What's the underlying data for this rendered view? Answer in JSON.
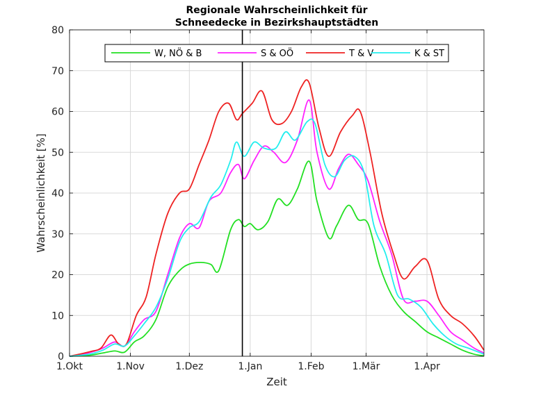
{
  "chart_data": {
    "type": "line",
    "title_line1": "Regionale Wahrscheinlichkeit für",
    "title_line2": "Schneedecke in Bezirkshauptstädten",
    "xlabel": "Zeit",
    "ylabel": "Wahrscheinlichkeit [%]",
    "ylim": [
      0,
      80
    ],
    "yticks": [
      0,
      10,
      20,
      30,
      40,
      50,
      60,
      70,
      80
    ],
    "xlim": [
      "2000-10-01",
      "2001-04-30"
    ],
    "xticks": [
      {
        "date": "2000-10-01",
        "label": "1.Okt"
      },
      {
        "date": "2000-11-01",
        "label": "1.Nov"
      },
      {
        "date": "2000-12-01",
        "label": "1.Dez"
      },
      {
        "date": "2001-01-01",
        "label": "1.Jan"
      },
      {
        "date": "2001-02-01",
        "label": "1.Feb"
      },
      {
        "date": "2001-03-01",
        "label": "1.Mär"
      },
      {
        "date": "2001-04-01",
        "label": "1.Apr"
      }
    ],
    "grid": true,
    "legend_position": "top",
    "marker_date": "2000-12-28",
    "marker_color": "#000000",
    "series": [
      {
        "name": "W, NÖ & B",
        "color": "#22e022",
        "x": [
          "2000-10-01",
          "2000-10-06",
          "2000-10-12",
          "2000-10-18",
          "2000-10-24",
          "2000-10-29",
          "2000-11-03",
          "2000-11-08",
          "2000-11-14",
          "2000-11-20",
          "2000-11-26",
          "2000-12-01",
          "2000-12-07",
          "2000-12-12",
          "2000-12-16",
          "2000-12-22",
          "2000-12-26",
          "2000-12-29",
          "2001-01-01",
          "2001-01-05",
          "2001-01-10",
          "2001-01-15",
          "2001-01-20",
          "2001-01-25",
          "2001-01-31",
          "2001-02-04",
          "2001-02-10",
          "2001-02-14",
          "2001-02-20",
          "2001-02-25",
          "2001-03-02",
          "2001-03-08",
          "2001-03-14",
          "2001-03-20",
          "2001-03-26",
          "2001-04-01",
          "2001-04-07",
          "2001-04-13",
          "2001-04-19",
          "2001-04-25",
          "2001-04-30"
        ],
        "y": [
          0,
          0.1,
          0.3,
          0.8,
          1.3,
          1.0,
          3.5,
          5.0,
          9.0,
          17.0,
          21.0,
          22.6,
          23.0,
          22.5,
          21.0,
          31.0,
          33.5,
          31.8,
          32.5,
          31.0,
          33.0,
          38.5,
          37.0,
          41.0,
          47.8,
          38.0,
          29.0,
          32.0,
          37.0,
          33.5,
          32.5,
          22.0,
          15.0,
          11.0,
          8.5,
          6.0,
          4.5,
          3.0,
          1.5,
          0.5,
          0.1
        ]
      },
      {
        "name": "S & OÖ",
        "color": "#ff22ff",
        "x": [
          "2000-10-01",
          "2000-10-06",
          "2000-10-12",
          "2000-10-18",
          "2000-10-24",
          "2000-10-29",
          "2000-11-03",
          "2000-11-08",
          "2000-11-14",
          "2000-11-20",
          "2000-11-26",
          "2000-12-01",
          "2000-12-06",
          "2000-12-11",
          "2000-12-17",
          "2000-12-22",
          "2000-12-26",
          "2000-12-29",
          "2001-01-03",
          "2001-01-08",
          "2001-01-13",
          "2001-01-19",
          "2001-01-25",
          "2001-01-31",
          "2001-02-04",
          "2001-02-10",
          "2001-02-15",
          "2001-02-20",
          "2001-02-25",
          "2001-03-02",
          "2001-03-08",
          "2001-03-14",
          "2001-03-20",
          "2001-03-26",
          "2001-04-01",
          "2001-04-07",
          "2001-04-13",
          "2001-04-19",
          "2001-04-25",
          "2001-04-30"
        ],
        "y": [
          0,
          0.3,
          1.0,
          2.0,
          3.5,
          2.5,
          6.0,
          9.0,
          11.0,
          20.0,
          29.0,
          32.5,
          31.5,
          38.0,
          40.0,
          45.0,
          47.0,
          43.5,
          48.0,
          51.5,
          50.0,
          47.5,
          53.0,
          62.8,
          50.0,
          41.0,
          46.0,
          49.5,
          47.0,
          43.0,
          33.0,
          25.0,
          14.0,
          13.5,
          13.5,
          10.0,
          6.0,
          4.0,
          2.0,
          0.8
        ]
      },
      {
        "name": "T & V",
        "color": "#ee2222",
        "x": [
          "2000-10-01",
          "2000-10-06",
          "2000-10-12",
          "2000-10-17",
          "2000-10-22",
          "2000-10-26",
          "2000-10-30",
          "2000-11-04",
          "2000-11-09",
          "2000-11-14",
          "2000-11-20",
          "2000-11-26",
          "2000-12-01",
          "2000-12-06",
          "2000-12-11",
          "2000-12-16",
          "2000-12-21",
          "2000-12-25",
          "2000-12-28",
          "2001-01-02",
          "2001-01-07",
          "2001-01-12",
          "2001-01-17",
          "2001-01-22",
          "2001-01-27",
          "2001-01-31",
          "2001-02-05",
          "2001-02-10",
          "2001-02-16",
          "2001-02-22",
          "2001-02-26",
          "2001-03-03",
          "2001-03-09",
          "2001-03-15",
          "2001-03-20",
          "2001-03-26",
          "2001-04-01",
          "2001-04-07",
          "2001-04-13",
          "2001-04-19",
          "2001-04-25",
          "2001-04-30"
        ],
        "y": [
          0,
          0.5,
          1.2,
          2.0,
          5.2,
          3.0,
          3.0,
          10.0,
          14.5,
          25.0,
          35.0,
          40.0,
          41.0,
          47.0,
          53.0,
          60.0,
          62.0,
          58.0,
          59.5,
          62.0,
          65.0,
          58.0,
          57.0,
          60.0,
          66.0,
          67.0,
          56.0,
          49.0,
          55.0,
          59.0,
          60.0,
          50.0,
          35.0,
          25.0,
          19.0,
          22.0,
          23.5,
          14.0,
          10.0,
          8.0,
          5.0,
          1.5
        ]
      },
      {
        "name": "K & ST",
        "color": "#22eeee",
        "x": [
          "2000-10-01",
          "2000-10-06",
          "2000-10-12",
          "2000-10-18",
          "2000-10-24",
          "2000-10-29",
          "2000-11-03",
          "2000-11-08",
          "2000-11-14",
          "2000-11-20",
          "2000-11-26",
          "2000-12-01",
          "2000-12-06",
          "2000-12-12",
          "2000-12-17",
          "2000-12-22",
          "2000-12-25",
          "2000-12-29",
          "2001-01-03",
          "2001-01-08",
          "2001-01-14",
          "2001-01-19",
          "2001-01-24",
          "2001-01-30",
          "2001-02-03",
          "2001-02-08",
          "2001-02-13",
          "2001-02-18",
          "2001-02-23",
          "2001-02-28",
          "2001-03-05",
          "2001-03-11",
          "2001-03-17",
          "2001-03-23",
          "2001-03-29",
          "2001-04-04",
          "2001-04-10",
          "2001-04-16",
          "2001-04-22",
          "2001-04-30"
        ],
        "y": [
          0,
          0.2,
          0.6,
          1.5,
          3.0,
          2.5,
          5.0,
          8.0,
          12.0,
          19.0,
          28.0,
          31.5,
          33.0,
          39.0,
          42.0,
          48.0,
          52.5,
          49.0,
          52.5,
          51.0,
          51.0,
          55.0,
          53.0,
          57.5,
          57.0,
          47.0,
          44.0,
          48.0,
          49.0,
          45.0,
          32.0,
          25.0,
          15.0,
          14.0,
          12.0,
          8.0,
          5.0,
          3.0,
          2.0,
          0.5
        ]
      }
    ]
  }
}
